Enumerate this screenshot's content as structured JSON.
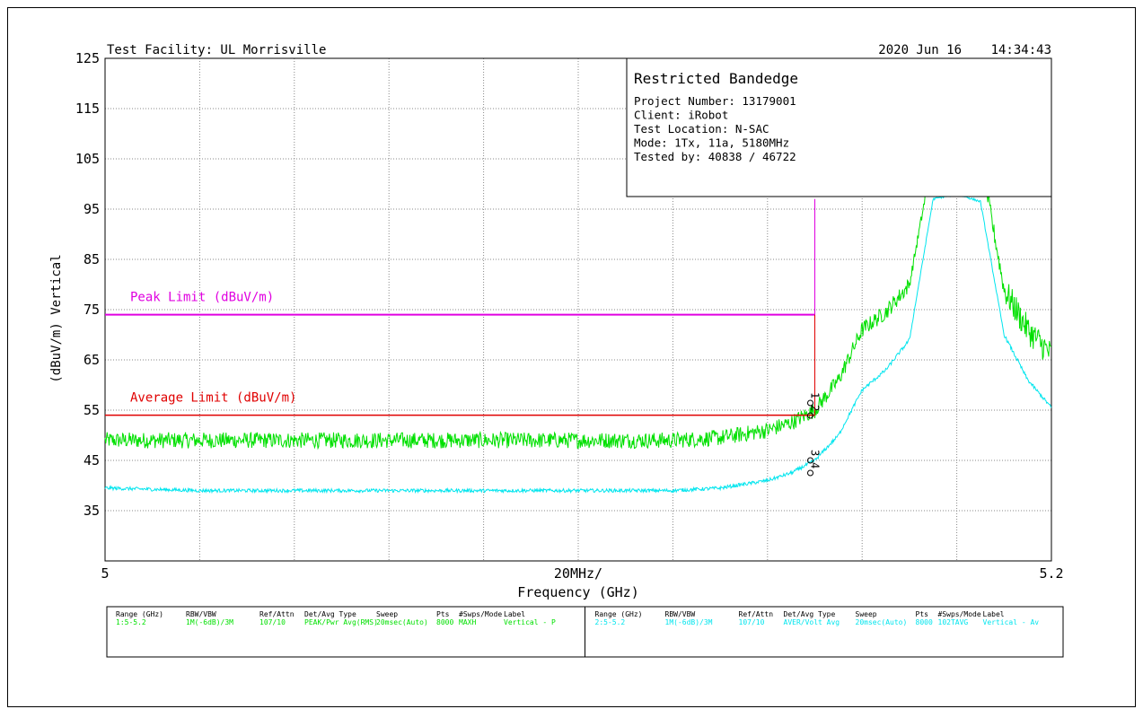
{
  "header": {
    "facility": "Test Facility:  UL Morrisville",
    "date": "2020 Jun 16",
    "time": "14:34:43"
  },
  "info_box": {
    "title": "Restricted Bandedge",
    "lines": [
      "Project Number: 13179001",
      "Client: iRobot",
      "Test Location: N-SAC",
      "Mode: 1Tx, 11a, 5180MHz",
      "Tested by: 40838 / 46722"
    ]
  },
  "colors": {
    "peak_trace": "#00e000",
    "average_trace": "#00e5ee",
    "peak_limit": "#e000e0",
    "average_limit": "#e00000",
    "grid": "#888888"
  },
  "chart_data": {
    "type": "line",
    "xlabel": "Frequency (GHz)",
    "ylabel": "(dBuV/m) Vertical",
    "x_tick_labels": [
      "5",
      "20MHz/",
      "5.2"
    ],
    "xlim": [
      5.0,
      5.2
    ],
    "ylim": [
      25,
      125
    ],
    "y_ticks": [
      35,
      45,
      55,
      65,
      75,
      85,
      95,
      105,
      115,
      125
    ],
    "grid": true,
    "limits": [
      {
        "name": "Peak Limit (dBuV/m)",
        "value": 74,
        "x_end": 5.15
      },
      {
        "name": "Average Limit (dBuV/m)",
        "value": 54,
        "x_end": 5.15
      }
    ],
    "series": [
      {
        "x": [
          5.0,
          5.02,
          5.04,
          5.06,
          5.08,
          5.1,
          5.12,
          5.13,
          5.14,
          5.145,
          5.15,
          5.155,
          5.16,
          5.165,
          5.17,
          5.175,
          5.18,
          5.185,
          5.19,
          5.195,
          5.2
        ],
        "values": [
          49,
          49,
          49,
          49,
          49,
          49,
          49,
          49.5,
          51,
          52.5,
          55,
          61,
          71,
          74.5,
          80,
          106,
          107,
          105.5,
          79,
          71,
          66
        ]
      },
      {
        "x": [
          5.0,
          5.02,
          5.04,
          5.06,
          5.08,
          5.1,
          5.12,
          5.13,
          5.14,
          5.145,
          5.15,
          5.155,
          5.16,
          5.165,
          5.17,
          5.175,
          5.18,
          5.185,
          5.19,
          5.195,
          5.2
        ],
        "values": [
          39.5,
          39,
          39,
          39,
          39,
          39,
          39,
          39.5,
          41,
          42.5,
          45,
          50,
          59,
          63,
          69,
          97,
          98,
          96.5,
          70,
          61,
          55.5
        ]
      }
    ],
    "markers": [
      {
        "label": "1",
        "x": 5.15,
        "y": 55
      },
      {
        "label": "2",
        "x": 5.15,
        "y": 55
      },
      {
        "label": "3",
        "x": 5.15,
        "y": 45
      },
      {
        "label": "4",
        "x": 5.15,
        "y": 45
      }
    ]
  },
  "settings_table": {
    "headers": [
      "Range (GHz)",
      "RBW/VBW",
      "Ref/Attn",
      "Det/Avg Type",
      "Sweep",
      "Pts",
      "#Swps/Mode",
      "Label"
    ],
    "rows": [
      [
        "1:5-5.2",
        "1M(-6dB)/3M",
        "107/10",
        "PEAK/Pwr Avg(RMS)",
        "20msec(Auto)",
        "8000",
        "MAXH",
        "Vertical - P"
      ],
      [
        "2:5-5.2",
        "1M(-6dB)/3M",
        "107/10",
        "AVER/Volt Avg",
        "20msec(Auto)",
        "8000",
        "102TAVG",
        "Vertical - Av"
      ]
    ]
  }
}
